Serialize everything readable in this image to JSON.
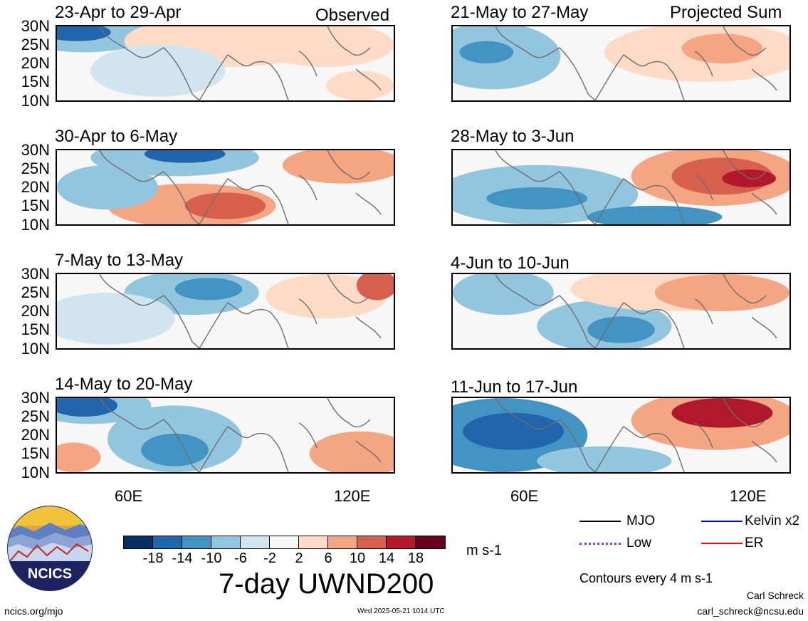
{
  "panels": [
    {
      "title": "23-Apr to 29-Apr",
      "tag": "Observed"
    },
    {
      "title": "30-Apr to 6-May"
    },
    {
      "title": "7-May to 13-May"
    },
    {
      "title": "14-May to 20-May"
    },
    {
      "title": "21-May to 27-May",
      "tag": "Projected Sum"
    },
    {
      "title": "28-May to 3-Jun"
    },
    {
      "title": "4-Jun to 10-Jun"
    },
    {
      "title": "11-Jun to 17-Jun"
    }
  ],
  "y_ticks": [
    "30N",
    "25N",
    "20N",
    "15N",
    "10N"
  ],
  "x_ticks": [
    "60E",
    "120E"
  ],
  "colorbar": {
    "colors": [
      "#053061",
      "#2166ac",
      "#4393c3",
      "#92c5de",
      "#d1e5f0",
      "#f7f7f7",
      "#fddbc7",
      "#f4a582",
      "#d6604d",
      "#b2182b",
      "#67001f"
    ],
    "labels": [
      "-18",
      "-14",
      "-10",
      "-6",
      "-2",
      "2",
      "6",
      "10",
      "14",
      "18"
    ],
    "units": "m s-1"
  },
  "title": "7-day UWND200",
  "legend": [
    {
      "label": "MJO",
      "color": "#000000"
    },
    {
      "label": "Kelvin x2",
      "color": "#0000ff"
    },
    {
      "label": "Low",
      "color": "#9b30ff"
    },
    {
      "label": "ER",
      "color": "#ff0000"
    }
  ],
  "contour_note": "Contours every 4 m s-1",
  "logo_text": "NCICS",
  "footer": {
    "url": "ncics.org/mjo",
    "timestamp": "Wed 2025-05-21 1014 UTC",
    "author": "Carl Schreck",
    "email": "carl_schreck@ncsu.edu"
  }
}
